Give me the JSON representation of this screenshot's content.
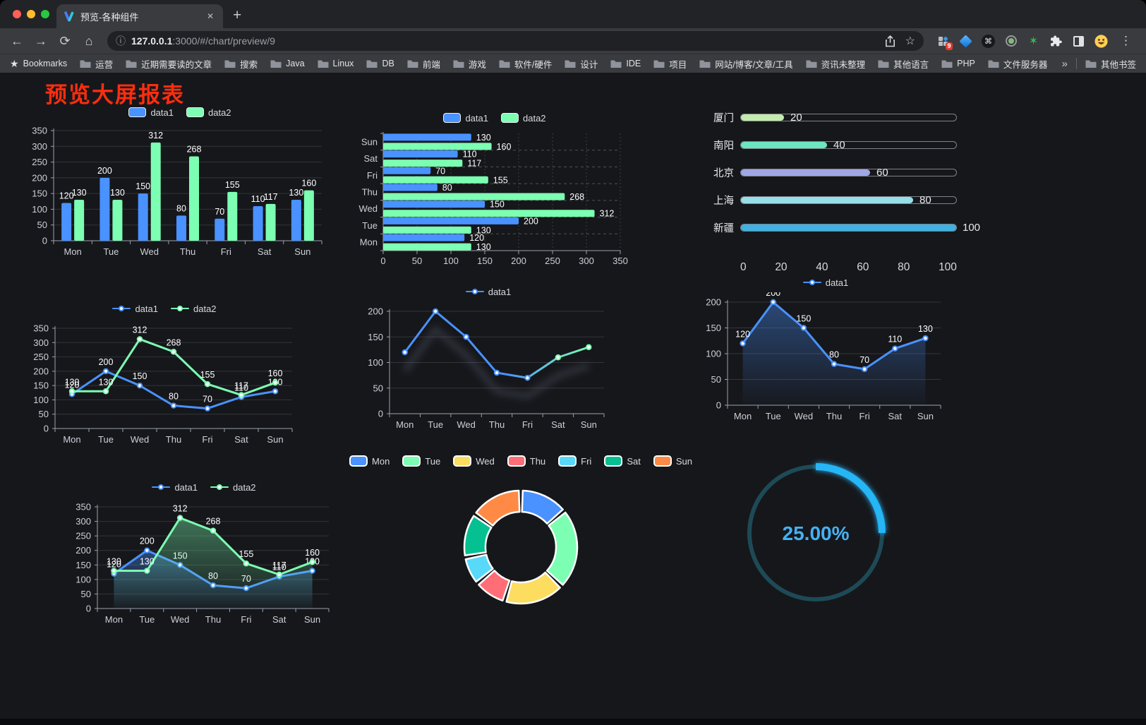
{
  "browser": {
    "tab_title": "预览-各种组件",
    "new_tab_plus": "+",
    "close_x": "✕",
    "url_host": "127.0.0.1",
    "url_rest": ":3000/#/chart/preview/9",
    "extensions_badge": "9",
    "bookmarks_root_label": "Bookmarks",
    "bookmarks": [
      "运营",
      "近期需要读的文章",
      "搜索",
      "Java",
      "Linux",
      "DB",
      "前端",
      "游戏",
      "软件/硬件",
      "设计",
      "IDE",
      "项目",
      "网站/博客/文章/工具",
      "资讯未整理",
      "其他语言",
      "PHP",
      "文件服务器"
    ],
    "bookmarks_overflow": "»",
    "other_bookmarks": "其他书签"
  },
  "page": {
    "title": "预览大屏报表",
    "title_color": "#fb2e0e"
  },
  "chart_data": [
    {
      "id": "bar-grouped",
      "type": "bar",
      "categories": [
        "Mon",
        "Tue",
        "Wed",
        "Thu",
        "Fri",
        "Sat",
        "Sun"
      ],
      "series": [
        {
          "name": "data1",
          "color": "#4992ff",
          "values": [
            120,
            200,
            150,
            80,
            70,
            110,
            130
          ]
        },
        {
          "name": "data2",
          "color": "#7cffb2",
          "values": [
            130,
            130,
            312,
            268,
            155,
            117,
            160
          ]
        }
      ],
      "ylim": [
        0,
        350
      ],
      "ystep": 50,
      "labels": true,
      "legend": "roundRect",
      "grid": true
    },
    {
      "id": "hbar-grouped",
      "type": "hbar",
      "categories": [
        "Mon",
        "Tue",
        "Wed",
        "Thu",
        "Fri",
        "Sat",
        "Sun"
      ],
      "series": [
        {
          "name": "data1",
          "color": "#4992ff",
          "values": [
            120,
            200,
            150,
            80,
            70,
            110,
            130
          ]
        },
        {
          "name": "data2",
          "color": "#7cffb2",
          "values": [
            130,
            130,
            312,
            268,
            155,
            117,
            160
          ]
        }
      ],
      "xlim": [
        0,
        350
      ],
      "xstep": 50,
      "labels": true,
      "legend": "roundRect",
      "grid": true
    },
    {
      "id": "progress-cities",
      "type": "progress",
      "xticks": [
        0,
        20,
        40,
        60,
        80,
        100
      ],
      "xlim": [
        0,
        100
      ],
      "items": [
        {
          "label": "厦门",
          "value": 20,
          "color": "#c4ebad"
        },
        {
          "label": "南阳",
          "value": 40,
          "color": "#6be6c1"
        },
        {
          "label": "北京",
          "value": 60,
          "color": "#a0a7e6"
        },
        {
          "label": "上海",
          "value": 80,
          "color": "#96dee8"
        },
        {
          "label": "新疆",
          "value": 100,
          "color": "#3fb1e3"
        }
      ]
    },
    {
      "id": "line-two-series",
      "type": "line",
      "categories": [
        "Mon",
        "Tue",
        "Wed",
        "Thu",
        "Fri",
        "Sat",
        "Sun"
      ],
      "series": [
        {
          "name": "data1",
          "color": "#4992ff",
          "values": [
            120,
            200,
            150,
            80,
            70,
            110,
            130
          ]
        },
        {
          "name": "data2",
          "color": "#7cffb2",
          "values": [
            130,
            130,
            312,
            268,
            155,
            117,
            160
          ]
        }
      ],
      "ylim": [
        0,
        350
      ],
      "ystep": 50,
      "labels": true,
      "legend": "lineCircle",
      "grid": true
    },
    {
      "id": "line-gradient",
      "type": "line",
      "categories": [
        "Mon",
        "Tue",
        "Wed",
        "Thu",
        "Fri",
        "Sat",
        "Sun"
      ],
      "series": [
        {
          "name": "data1",
          "color": "#4992ff",
          "gradient": [
            "#4992ff",
            "#7cffb2"
          ],
          "shadow": true,
          "values": [
            120,
            200,
            150,
            80,
            70,
            110,
            130
          ]
        }
      ],
      "ylim": [
        0,
        200
      ],
      "ystep": 50,
      "labels": false,
      "legend": "lineCircle",
      "grid": true
    },
    {
      "id": "line-area-blue",
      "type": "line",
      "categories": [
        "Mon",
        "Tue",
        "Wed",
        "Thu",
        "Fri",
        "Sat",
        "Sun"
      ],
      "series": [
        {
          "name": "data1",
          "color": "#4992ff",
          "area": true,
          "values": [
            120,
            200,
            150,
            80,
            70,
            110,
            130
          ]
        }
      ],
      "ylim": [
        0,
        200
      ],
      "ystep": 50,
      "labels": true,
      "legend": "lineCircle",
      "grid": true
    },
    {
      "id": "area-two-series",
      "type": "line",
      "categories": [
        "Mon",
        "Tue",
        "Wed",
        "Thu",
        "Fri",
        "Sat",
        "Sun"
      ],
      "series": [
        {
          "name": "data1",
          "color": "#4992ff",
          "area": true,
          "values": [
            120,
            200,
            150,
            80,
            70,
            110,
            130
          ]
        },
        {
          "name": "data2",
          "color": "#7cffb2",
          "area": true,
          "values": [
            130,
            130,
            312,
            268,
            155,
            117,
            160
          ]
        }
      ],
      "ylim": [
        0,
        350
      ],
      "ystep": 50,
      "labels": true,
      "legend": "lineCircle",
      "grid": true
    },
    {
      "id": "donut-week",
      "type": "donut",
      "categories": [
        "Mon",
        "Tue",
        "Wed",
        "Thu",
        "Fri",
        "Sat",
        "Sun"
      ],
      "values": [
        120,
        200,
        150,
        80,
        70,
        110,
        130
      ],
      "colors": [
        "#4992ff",
        "#7cffb2",
        "#fddd60",
        "#ff6e76",
        "#58d9f9",
        "#05c091",
        "#ff8a45"
      ],
      "legend": "roundRect",
      "border_color": "#ffffff"
    },
    {
      "id": "gauge-percent",
      "type": "gauge",
      "value": "25.00%",
      "percent": 25,
      "color": "#27b5f5",
      "track": "#1d4a56",
      "text_color": "#45b1f2"
    }
  ]
}
